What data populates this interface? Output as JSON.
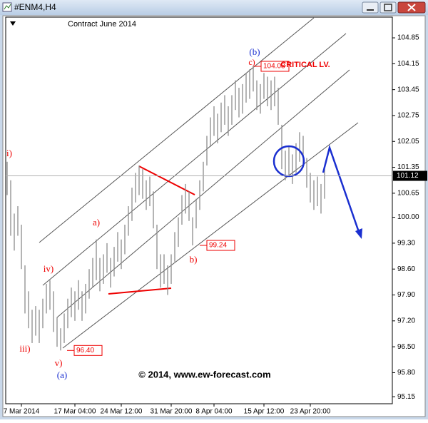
{
  "window": {
    "title": "#ENM4,H4"
  },
  "chart_data": {
    "type": "range-bar",
    "subtitle": "Contract June 2014",
    "color": "#8c8c8c",
    "high": [
      101.5,
      101.0,
      100.1,
      100.3,
      99.8,
      98.7,
      98.0,
      97.5,
      97.6,
      97.5,
      97.8,
      98.2,
      98.3,
      98.0,
      97.3,
      97.0,
      97.4,
      97.8,
      98.1,
      98.0,
      98.3,
      98.0,
      98.2,
      98.6,
      98.9,
      99.4,
      98.9,
      99.0,
      99.3,
      98.9,
      99.2,
      99.6,
      99.4,
      99.8,
      100.3,
      100.8,
      101.2,
      101.4,
      101.3,
      101.0,
      101.1,
      100.7,
      99.8,
      99.0,
      99.0,
      98.7,
      99.0,
      99.6,
      100.0,
      100.6,
      100.9,
      100.7,
      100.0,
      100.5,
      101.0,
      101.5,
      102.2,
      102.7,
      103.0,
      102.8,
      103.1,
      103.3,
      103.0,
      103.3,
      103.7,
      103.5,
      103.6,
      103.9,
      104.0,
      104.08,
      103.7,
      103.6,
      103.9,
      103.8,
      103.7,
      103.8,
      103.5,
      102.5,
      101.8,
      101.9,
      101.7,
      102.0,
      102.3,
      102.2,
      101.6,
      101.2,
      101.0,
      101.1,
      100.9,
      101.3
    ],
    "low": [
      100.6,
      99.5,
      99.1,
      99.5,
      98.6,
      97.4,
      97.0,
      96.6,
      96.8,
      96.6,
      97.0,
      97.4,
      97.5,
      96.9,
      96.5,
      96.4,
      96.6,
      97.0,
      97.3,
      97.2,
      97.5,
      97.2,
      97.4,
      97.8,
      98.1,
      98.3,
      98.0,
      98.2,
      98.5,
      98.1,
      98.4,
      98.8,
      98.6,
      99.0,
      99.5,
      99.9,
      100.4,
      100.6,
      100.5,
      100.2,
      100.3,
      99.7,
      98.6,
      98.1,
      98.2,
      97.9,
      98.2,
      98.8,
      99.2,
      99.8,
      100.1,
      99.9,
      99.24,
      99.7,
      100.2,
      100.7,
      101.4,
      101.9,
      102.2,
      102.0,
      102.3,
      102.5,
      102.2,
      102.5,
      102.9,
      102.7,
      102.8,
      103.1,
      103.2,
      103.4,
      102.9,
      102.8,
      103.2,
      103.0,
      102.9,
      103.0,
      102.5,
      101.3,
      101.0,
      101.1,
      100.9,
      101.2,
      101.5,
      101.4,
      100.8,
      100.4,
      100.2,
      100.3,
      100.1,
      100.5
    ],
    "xlim": [
      -0.4,
      108
    ],
    "xticks": [
      {
        "value": 4,
        "label": "7 Mar 2014"
      },
      {
        "value": 19,
        "label": "17 Mar 04:00"
      },
      {
        "value": 32,
        "label": "24 Mar 12:00"
      },
      {
        "value": 46,
        "label": "31 Mar 20:00"
      },
      {
        "value": 58,
        "label": "8 Apr 04:00"
      },
      {
        "value": 72,
        "label": "15 Apr 12:00"
      },
      {
        "value": 85,
        "label": "23 Apr 20:00"
      }
    ],
    "ylim": [
      94.96,
      105.41
    ],
    "yticks": [
      104.85,
      104.15,
      103.45,
      102.75,
      102.05,
      101.35,
      100.65,
      {
        "value": 100,
        "label": "100.00"
      },
      {
        "value": 99.3,
        "label": "99.30"
      },
      {
        "value": 98.6,
        "label": "98.60"
      },
      {
        "value": 97.9,
        "label": "97.90"
      },
      {
        "value": 97.2,
        "label": "97.20"
      },
      {
        "value": 96.5,
        "label": "96.50"
      },
      {
        "value": 95.8,
        "label": "95.80"
      },
      95.15
    ],
    "current_price": 101.12,
    "price_labels": [
      104.08,
      99.24,
      {
        "value": 96.4,
        "label": "96.40"
      }
    ],
    "annotations": [
      "(b)",
      "c)",
      "CRITICAL LV.",
      "i)",
      "iii)",
      "iv)",
      "v)",
      "(a)",
      "a)",
      "b)"
    ],
    "watermark": "© 2014, www.ew-forecast.com"
  }
}
